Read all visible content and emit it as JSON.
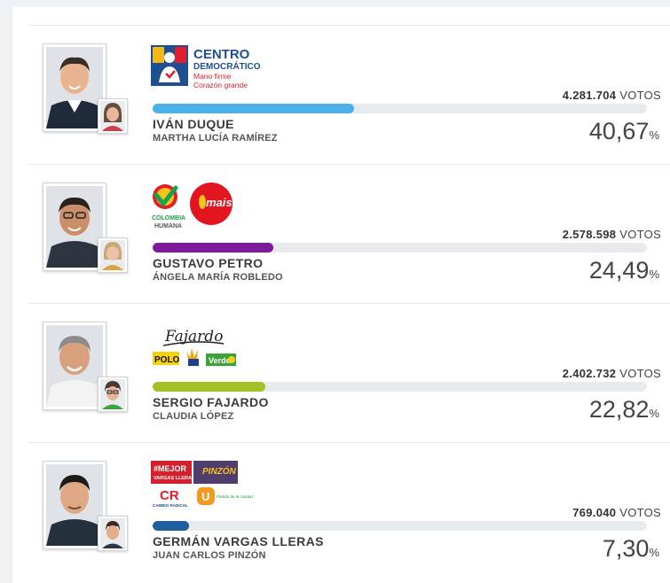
{
  "votes_unit": "VOTOS",
  "percent_sign": "%",
  "candidates": [
    {
      "name": "IVÁN DUQUE",
      "running_mate": "MARTHA LUCÍA RAMÍREZ",
      "votes": "4.281.704",
      "percent": "40,67",
      "share": 40.67,
      "bar_color": "#4cb1e6",
      "party_logos": [
        {
          "icon": "centro-democratico-logo",
          "lines": [
            "CENTRO",
            "DEMOCRÁTICO"
          ],
          "slogan": [
            "Mano firme",
            "Corazón grande"
          ]
        }
      ]
    },
    {
      "name": "GUSTAVO PETRO",
      "running_mate": "ÁNGELA MARÍA ROBLEDO",
      "votes": "2.578.598",
      "percent": "24,49",
      "share": 24.49,
      "bar_color": "#7d1b9c",
      "party_logos": [
        {
          "icon": "colombia-humana-logo",
          "lines": [
            "COLOMBIA",
            "HUMANA"
          ]
        },
        {
          "icon": "mais-logo",
          "lines": [
            "mais"
          ]
        }
      ]
    },
    {
      "name": "SERGIO FAJARDO",
      "running_mate": "CLAUDIA LÓPEZ",
      "votes": "2.402.732",
      "percent": "22,82",
      "share": 22.82,
      "bar_color": "#a3c126",
      "party_logos": [
        {
          "icon": "fajardo-signature-logo",
          "lines": [
            "Fajardo"
          ]
        },
        {
          "icon": "polo-logo",
          "lines": [
            "POLO"
          ]
        },
        {
          "icon": "compromiso-ciudadano-logo",
          "lines": []
        },
        {
          "icon": "verde-logo",
          "lines": [
            "Verde"
          ]
        }
      ]
    },
    {
      "name": "GERMÁN VARGAS LLERAS",
      "running_mate": "JUAN CARLOS PINZÓN",
      "votes": "769.040",
      "percent": "7,30",
      "share": 7.3,
      "bar_color": "#1f5f9f",
      "party_logos": [
        {
          "icon": "mejor-vargas-lleras-logo",
          "lines": [
            "#MEJOR",
            "VARGAS LLERAS"
          ]
        },
        {
          "icon": "pinzon-logo",
          "lines": [
            "PINZÓN"
          ]
        },
        {
          "icon": "cambio-radical-logo",
          "lines": [
            "CR",
            "CAMBIO RADICAL"
          ]
        },
        {
          "icon": "partido-de-la-u-logo",
          "lines": [
            "U",
            "Partido de la Unidad"
          ]
        }
      ]
    }
  ]
}
